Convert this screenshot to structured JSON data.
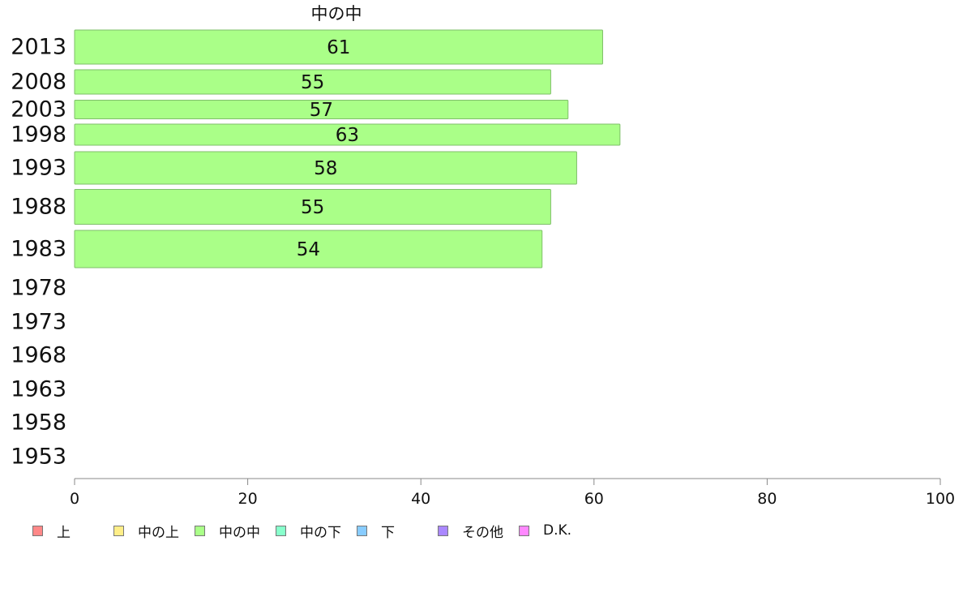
{
  "chart_data": {
    "type": "bar",
    "orientation": "horizontal",
    "title": "中の中",
    "categories": [
      "2013",
      "2008",
      "2003",
      "1998",
      "1993",
      "1988",
      "1983",
      "1978",
      "1973",
      "1968",
      "1963",
      "1958",
      "1953"
    ],
    "series": [
      {
        "name": "中の中",
        "color": "#aaff88",
        "values": [
          61,
          55,
          57,
          63,
          58,
          55,
          54,
          null,
          null,
          null,
          null,
          null,
          null
        ],
        "labels": [
          "61",
          "55",
          "57",
          "63",
          "58",
          "55",
          "54",
          "",
          "",
          "",
          "",
          "",
          ""
        ]
      }
    ],
    "xlim": [
      0,
      100
    ],
    "xticks": [
      "0",
      "20",
      "40",
      "60",
      "80",
      "100"
    ],
    "grid": false,
    "legend": {
      "placement": "bottom",
      "items": [
        {
          "label": "上",
          "color": "#ff8888"
        },
        {
          "label": "中の上",
          "color": "#ffee88"
        },
        {
          "label": "中の中",
          "color": "#aaff88"
        },
        {
          "label": "中の下",
          "color": "#88ffcc"
        },
        {
          "label": "下",
          "color": "#88ccff"
        },
        {
          "label": "その他",
          "color": "#aa88ff"
        },
        {
          "label": "D.K.",
          "color": "#ff88ff"
        }
      ]
    }
  }
}
